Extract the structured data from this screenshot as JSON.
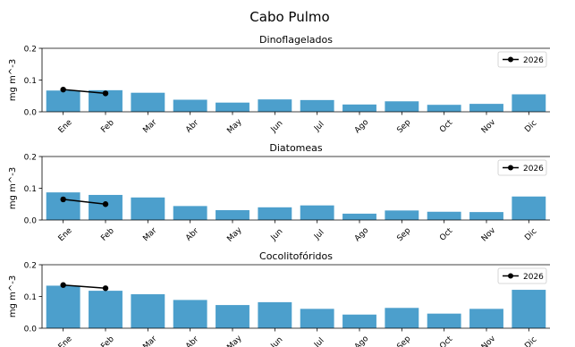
{
  "figure": {
    "title": "Cabo Pulmo",
    "bar_color": "#4c9fcc",
    "line_color": "#000000"
  },
  "chart_data": [
    {
      "type": "bar",
      "title": "Dinoflagelados",
      "ylabel": "mg m^-3",
      "xlabel": "",
      "ylim": [
        0,
        0.2
      ],
      "yticks": [
        "0.0",
        "0.1",
        "0.2"
      ],
      "categories": [
        "Ene",
        "Feb",
        "Mar",
        "Abr",
        "May",
        "Jun",
        "Jul",
        "Ago",
        "Sep",
        "Oct",
        "Nov",
        "Dic"
      ],
      "values": [
        0.067,
        0.068,
        0.06,
        0.038,
        0.029,
        0.039,
        0.037,
        0.023,
        0.033,
        0.022,
        0.025,
        0.055
      ],
      "line": {
        "name": "2026",
        "values": [
          0.07,
          0.058
        ]
      },
      "legend": "top-right"
    },
    {
      "type": "bar",
      "title": "Diatomeas",
      "ylabel": "mg m^-3",
      "xlabel": "",
      "ylim": [
        0,
        0.2
      ],
      "yticks": [
        "0.0",
        "0.1",
        "0.2"
      ],
      "categories": [
        "Ene",
        "Feb",
        "Mar",
        "Abr",
        "May",
        "Jun",
        "Jul",
        "Ago",
        "Sep",
        "Oct",
        "Nov",
        "Dic"
      ],
      "values": [
        0.087,
        0.079,
        0.071,
        0.044,
        0.031,
        0.04,
        0.046,
        0.02,
        0.03,
        0.026,
        0.025,
        0.074
      ],
      "line": {
        "name": "2026",
        "values": [
          0.065,
          0.05
        ]
      },
      "legend": "top-right"
    },
    {
      "type": "bar",
      "title": "Cocolitofóridos",
      "ylabel": "mg m^-3",
      "xlabel": "",
      "ylim": [
        0,
        0.2
      ],
      "yticks": [
        "0.0",
        "0.1",
        "0.2"
      ],
      "categories": [
        "Ene",
        "Feb",
        "Mar",
        "Abr",
        "May",
        "Jun",
        "Jul",
        "Ago",
        "Sep",
        "Oct",
        "Nov",
        "Dic"
      ],
      "values": [
        0.134,
        0.118,
        0.107,
        0.089,
        0.073,
        0.082,
        0.061,
        0.043,
        0.064,
        0.046,
        0.061,
        0.121
      ],
      "line": {
        "name": "2026",
        "values": [
          0.136,
          0.126
        ]
      },
      "legend": "top-right"
    }
  ]
}
